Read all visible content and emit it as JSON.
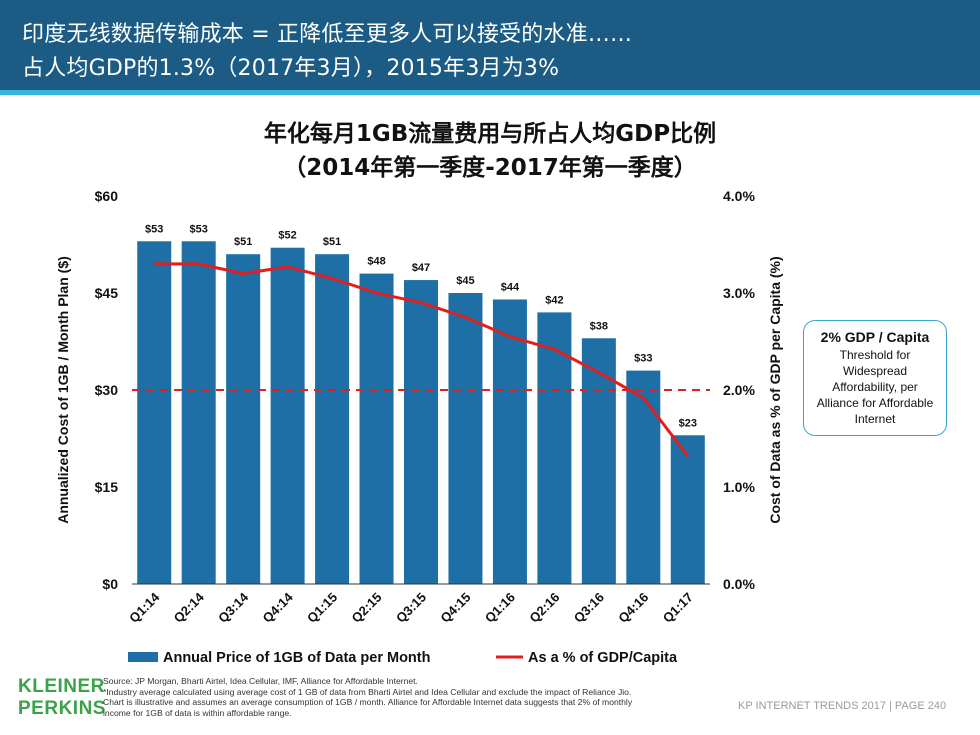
{
  "header": {
    "line1": "印度无线数据传输成本 = 正降低至更多人可以接受的水准……",
    "line2": "占人均GDP的1.3%（2017年3月），2015年3月为3%"
  },
  "chart_data": {
    "type": "bar",
    "title": "年化每月1GB流量费用与所占人均GDP比例",
    "subtitle": "（2014年第一季度-2017年第一季度）",
    "categories": [
      "Q1:14",
      "Q2:14",
      "Q3:14",
      "Q4:14",
      "Q1:15",
      "Q2:15",
      "Q3:15",
      "Q4:15",
      "Q1:16",
      "Q2:16",
      "Q3:16",
      "Q4:16",
      "Q1:17"
    ],
    "series": [
      {
        "name": "Annual Price of 1GB of Data per Month",
        "axis": "left",
        "type": "bar",
        "color": "#1e6fa5",
        "values": [
          53,
          53,
          51,
          52,
          51,
          48,
          47,
          45,
          44,
          42,
          38,
          33,
          23
        ],
        "labels": [
          "$53",
          "$53",
          "$51",
          "$52",
          "$51",
          "$48",
          "$47",
          "$45",
          "$44",
          "$42",
          "$38",
          "$33",
          "$23"
        ]
      },
      {
        "name": "As a % of GDP/Capita",
        "axis": "right",
        "type": "line",
        "color": "#e02020",
        "values": [
          3.3,
          3.3,
          3.2,
          3.27,
          3.15,
          3.0,
          2.9,
          2.75,
          2.55,
          2.42,
          2.18,
          1.92,
          1.32
        ]
      }
    ],
    "ylabel": "Annualized Cost of 1GB / Month Plan ($)",
    "ylim": [
      0,
      60
    ],
    "yticks": [
      "$0",
      "$15",
      "$30",
      "$45",
      "$60"
    ],
    "y2label": "Cost of Data as % of GDP per Capita (%)",
    "y2lim": [
      0,
      4
    ],
    "y2ticks": [
      "0.0%",
      "1.0%",
      "2.0%",
      "3.0%",
      "4.0%"
    ],
    "threshold": {
      "value_pct": 2.0,
      "color": "#e02020",
      "style": "dashed"
    },
    "grid": false,
    "legend": "bottom"
  },
  "callout": {
    "title": "2% GDP / Capita",
    "body": "Threshold for Widespread Affordability, per Alliance for Affordable Internet"
  },
  "footer": {
    "logo_line1": "KLEINER",
    "logo_line2": "PERKINS",
    "source_line1": "Source: JP Morgan, Bharti Airtel, Idea Cellular, IMF, Alliance for Affordable Internet.",
    "source_line2": "*Industry average calculated using average cost of 1 GB of data from Bharti Airtel and Idea Cellular and exclude the impact of Reliance Jio.",
    "source_line3": "Chart is illustrative and assumes an average consumption of 1GB / month. Alliance for Affordable Internet data suggests that 2% of monthly",
    "source_line4": "income for 1GB of data is within affordable range.",
    "page_label": "KP INTERNET TRENDS 2017  |  PAGE 240"
  }
}
